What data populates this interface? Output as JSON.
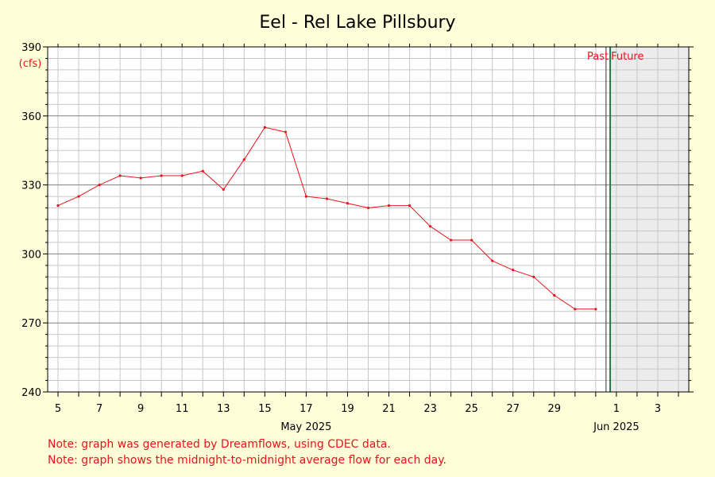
{
  "chart_data": {
    "type": "line",
    "title": "Eel - Rel Lake Pillsbury",
    "y_unit": "(cfs)",
    "ylim": [
      240,
      390
    ],
    "y_ticks": [
      240,
      270,
      300,
      330,
      360,
      390
    ],
    "x_ticks": [
      {
        "day": 5,
        "label": "5"
      },
      {
        "day": 7,
        "label": "7"
      },
      {
        "day": 9,
        "label": "9"
      },
      {
        "day": 11,
        "label": "11"
      },
      {
        "day": 13,
        "label": "13"
      },
      {
        "day": 15,
        "label": "15"
      },
      {
        "day": 17,
        "label": "17"
      },
      {
        "day": 19,
        "label": "19"
      },
      {
        "day": 21,
        "label": "21"
      },
      {
        "day": 23,
        "label": "23"
      },
      {
        "day": 25,
        "label": "25"
      },
      {
        "day": 27,
        "label": "27"
      },
      {
        "day": 29,
        "label": "29"
      },
      {
        "day": 32,
        "label": "1"
      },
      {
        "day": 34,
        "label": "3"
      }
    ],
    "month_labels": [
      {
        "day": 17,
        "label": "May 2025"
      },
      {
        "day": 32,
        "label": "Jun 2025"
      }
    ],
    "x_range_days": [
      4.5,
      35.5
    ],
    "x": [
      5,
      6,
      7,
      8,
      9,
      10,
      11,
      12,
      13,
      14,
      15,
      16,
      17,
      18,
      19,
      20,
      21,
      22,
      23,
      24,
      25,
      26,
      27,
      28,
      29,
      30,
      31
    ],
    "series": [
      {
        "values": [
          321,
          325,
          330,
          334,
          333,
          334,
          334,
          336,
          328,
          341,
          355,
          353,
          325,
          324,
          322,
          320,
          321,
          321,
          312,
          306,
          306,
          297,
          293,
          290,
          282,
          276,
          276
        ]
      }
    ],
    "today_day": 31.7,
    "past_label": "Past",
    "future_label": "Future",
    "grid": true,
    "notes": [
      "Note: graph was generated by Dreamflows, using CDEC data.",
      "Note: graph shows the midnight-to-midnight average flow for each day."
    ],
    "colors": {
      "line": "#e8141c",
      "today_line": "#1f7a4d",
      "future_shade": "#ececec",
      "text_red": "#e8141c",
      "background": "#fffed8",
      "plot_background": "#ffffff"
    }
  }
}
